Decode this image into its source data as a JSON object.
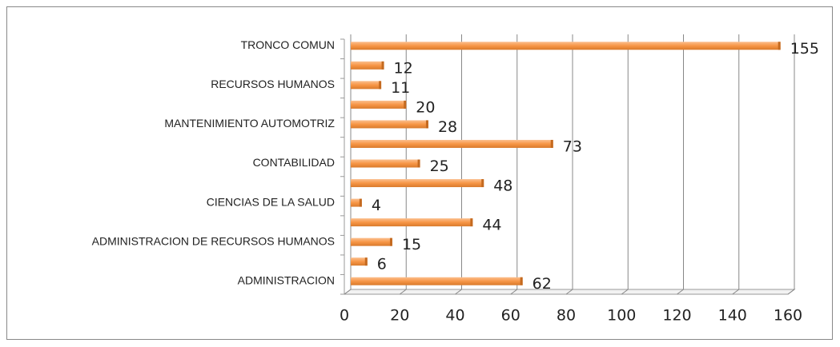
{
  "chart_data": {
    "type": "bar",
    "orientation": "horizontal",
    "categories": [
      "TRONCO COMUN",
      null,
      "RECURSOS HUMANOS",
      null,
      "MANTENIMIENTO AUTOMOTRIZ",
      null,
      "CONTABILIDAD",
      null,
      "CIENCIAS DE LA SALUD",
      null,
      "ADMINISTRACION DE RECURSOS HUMANOS",
      null,
      "ADMINISTRACION"
    ],
    "values": [
      155,
      12,
      11,
      20,
      28,
      73,
      25,
      48,
      4,
      44,
      15,
      6,
      62
    ],
    "color": "#f79646",
    "xlim": [
      0,
      160
    ],
    "xticks": [
      0,
      20,
      40,
      60,
      80,
      100,
      120,
      140,
      160
    ],
    "grid": true
  }
}
